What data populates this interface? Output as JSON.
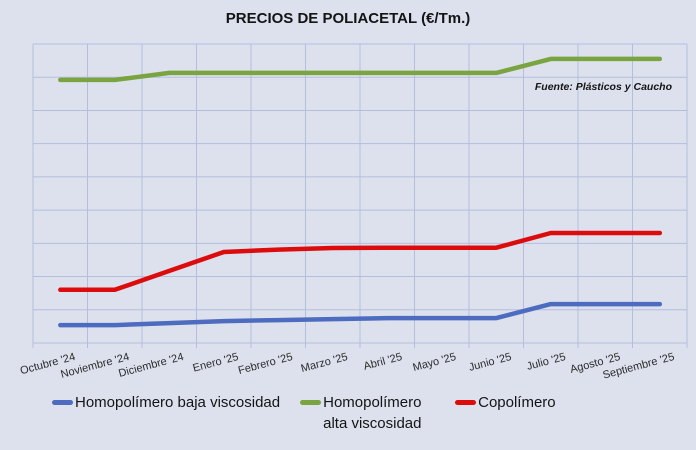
{
  "chart_data": {
    "type": "line",
    "title": "PRECIOS DE POLIACETAL (€/Tm.)",
    "source_note": "Fuente: Plásticos y Caucho",
    "categories": [
      "Octubre '24",
      "Noviembre '24",
      "Diciembre '24",
      "Enero '25",
      "Febrero '25",
      "Marzo '25",
      "Abril '25",
      "Mayo '25",
      "Junio '25",
      "Julio '25",
      "Agosto '25",
      "Septiembre '25"
    ],
    "xlabel": "",
    "ylabel": "",
    "y_axis_note": "no numeric tick labels shown; values estimated in gridline units above the bottom gridline (9 rows tall)",
    "ylim": [
      0,
      9
    ],
    "grid": true,
    "gridlines_horizontal": 10,
    "gridlines_vertical": 13,
    "legend_position": "bottom",
    "series": [
      {
        "name": "Homopolímero baja viscosidad",
        "color": "#4d6cbf",
        "values": [
          0.54,
          0.54,
          0.6,
          0.66,
          0.69,
          0.72,
          0.75,
          0.75,
          0.75,
          1.17,
          1.17,
          1.17
        ]
      },
      {
        "name": "Homopolímero alta viscosidad",
        "color": "#7aa43f",
        "values": [
          7.92,
          7.92,
          8.13,
          8.13,
          8.13,
          8.13,
          8.13,
          8.13,
          8.13,
          8.55,
          8.55,
          8.55
        ]
      },
      {
        "name": "Copolímero",
        "color": "#dd0c0c",
        "values": [
          1.6,
          1.6,
          2.17,
          2.74,
          2.81,
          2.86,
          2.87,
          2.87,
          2.87,
          3.31,
          3.31,
          3.31
        ]
      }
    ],
    "style": {
      "background": "#dde1ee",
      "gridline_color": "#b3bedd",
      "line_width": 4.5
    }
  }
}
